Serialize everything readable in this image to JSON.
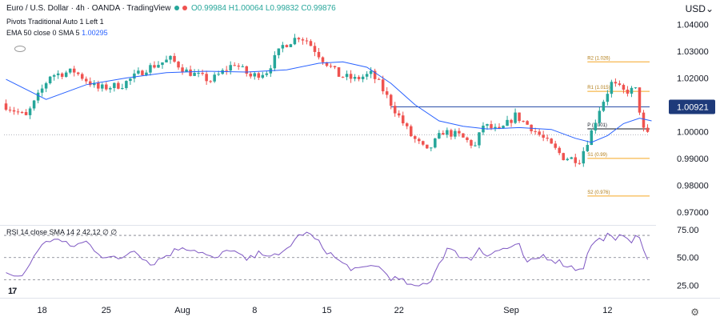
{
  "header": {
    "symbol_title": "Euro / U.S. Dollar · 4h · OANDA · TradingView",
    "ohlc": "O0.99984 H1.00064 L0.99832 C0.99876",
    "pivots_label": "Pivots Traditional Auto 1 Left 1",
    "ema_label": "EMA 50 close 0 SMA 5",
    "ema_value": "1.00295",
    "currency": "USD"
  },
  "rsi_legend": "RSI 14 close SMA 14 2 42.12 ∅ ∅",
  "colors": {
    "up": "#26a69a",
    "down": "#ef5350",
    "ema": "#2962ff",
    "rsi": "#7e57c2",
    "pivot": "#f5a623",
    "hline": "#2a4ea8"
  },
  "chart_data": [
    {
      "type": "candlestick",
      "title": "Euro / U.S. Dollar · 4h · OANDA · TradingView",
      "ylim": [
        0.9655,
        1.0425
      ],
      "y_ticks": [
        "1.04000",
        "1.03000",
        "1.02000",
        "1.00000",
        "0.99000",
        "0.98000",
        "0.97000"
      ],
      "x_ticks": [
        "18",
        "25",
        "Aug",
        "8",
        "15",
        "22",
        "Sep",
        "12"
      ],
      "x_tick_positions": [
        9,
        25,
        44,
        62,
        80,
        98,
        126,
        150
      ],
      "bar_count": 161,
      "price_path": [
        [
          0,
          1.0105
        ],
        [
          6,
          1.0055
        ],
        [
          12,
          1.021
        ],
        [
          18,
          1.0225
        ],
        [
          24,
          1.016
        ],
        [
          30,
          1.0175
        ],
        [
          36,
          1.0235
        ],
        [
          42,
          1.027
        ],
        [
          46,
          1.0225
        ],
        [
          52,
          1.019
        ],
        [
          58,
          1.0255
        ],
        [
          62,
          1.0205
        ],
        [
          66,
          1.0225
        ],
        [
          70,
          1.032
        ],
        [
          74,
          1.0355
        ],
        [
          76,
          1.034
        ],
        [
          80,
          1.027
        ],
        [
          84,
          1.021
        ],
        [
          88,
          1.0195
        ],
        [
          92,
          1.0215
        ],
        [
          94,
          1.018
        ],
        [
          98,
          1.008
        ],
        [
          102,
          0.9985
        ],
        [
          106,
          0.9925
        ],
        [
          110,
          1.0
        ],
        [
          114,
          0.9985
        ],
        [
          118,
          0.9945
        ],
        [
          120,
          1.0025
        ],
        [
          124,
          1.0
        ],
        [
          128,
          1.006
        ],
        [
          132,
          1.0015
        ],
        [
          136,
          0.996
        ],
        [
          140,
          0.9905
        ],
        [
          144,
          0.9895
        ],
        [
          147,
          1.0
        ],
        [
          149,
          1.0085
        ],
        [
          152,
          1.018
        ],
        [
          155,
          1.015
        ],
        [
          158,
          1.0155
        ],
        [
          160,
          1.0005
        ],
        [
          161,
          0.9988
        ]
      ],
      "ema_path": [
        [
          0,
          1.0195
        ],
        [
          10,
          1.012
        ],
        [
          20,
          1.0175
        ],
        [
          30,
          1.02
        ],
        [
          40,
          1.022
        ],
        [
          50,
          1.0225
        ],
        [
          60,
          1.0222
        ],
        [
          70,
          1.023
        ],
        [
          78,
          1.0255
        ],
        [
          84,
          1.026
        ],
        [
          90,
          1.024
        ],
        [
          96,
          1.018
        ],
        [
          102,
          1.01
        ],
        [
          108,
          1.004
        ],
        [
          114,
          1.002
        ],
        [
          120,
          1.001
        ],
        [
          128,
          1.0015
        ],
        [
          136,
          1.0008
        ],
        [
          142,
          0.9975
        ],
        [
          146,
          0.996
        ],
        [
          150,
          0.9985
        ],
        [
          154,
          1.003
        ],
        [
          158,
          1.005
        ],
        [
          161,
          1.004
        ]
      ],
      "hlines": [
        {
          "name": "level-1-00921",
          "value": 1.00921,
          "label": "1.00921",
          "from_bar": 96
        },
        {
          "name": "pivot-p",
          "value": 1.001,
          "label": "P (1.001)",
          "from_bar": 145
        },
        {
          "name": "dotted-last",
          "value": 0.9988,
          "label": "",
          "from_bar": 0
        }
      ],
      "pivots": [
        {
          "label": "R2 (1.026)",
          "value": 1.026
        },
        {
          "label": "R1 (1.015)",
          "value": 1.015
        },
        {
          "label": "P (1.001)",
          "value": 1.001
        },
        {
          "label": "S1 (0.99)",
          "value": 0.99
        },
        {
          "label": "S2 (0.976)",
          "value": 0.976
        }
      ],
      "highlight_value": "1.00921"
    },
    {
      "type": "line",
      "title": "RSI 14 close SMA 14 2",
      "ylim": [
        18,
        78
      ],
      "y_ticks": [
        "75.00",
        "50.00",
        "25.00"
      ],
      "bands": [
        70,
        50,
        30
      ],
      "rsi_path": [
        [
          0,
          36
        ],
        [
          4,
          32
        ],
        [
          8,
          58
        ],
        [
          12,
          68
        ],
        [
          16,
          60
        ],
        [
          20,
          64
        ],
        [
          24,
          52
        ],
        [
          28,
          48
        ],
        [
          32,
          58
        ],
        [
          36,
          44
        ],
        [
          40,
          52
        ],
        [
          44,
          60
        ],
        [
          48,
          56
        ],
        [
          52,
          48
        ],
        [
          56,
          58
        ],
        [
          60,
          47
        ],
        [
          64,
          55
        ],
        [
          68,
          50
        ],
        [
          72,
          66
        ],
        [
          74,
          72
        ],
        [
          76,
          70
        ],
        [
          80,
          56
        ],
        [
          84,
          44
        ],
        [
          88,
          38
        ],
        [
          92,
          44
        ],
        [
          96,
          32
        ],
        [
          100,
          27
        ],
        [
          102,
          22
        ],
        [
          106,
          30
        ],
        [
          108,
          45
        ],
        [
          110,
          58
        ],
        [
          112,
          54
        ],
        [
          116,
          48
        ],
        [
          118,
          60
        ],
        [
          120,
          52
        ],
        [
          124,
          58
        ],
        [
          128,
          60
        ],
        [
          130,
          44
        ],
        [
          134,
          52
        ],
        [
          138,
          46
        ],
        [
          142,
          40
        ],
        [
          144,
          42
        ],
        [
          146,
          62
        ],
        [
          150,
          70
        ],
        [
          152,
          64
        ],
        [
          154,
          72
        ],
        [
          156,
          66
        ],
        [
          158,
          68
        ],
        [
          160,
          48
        ],
        [
          161,
          43
        ]
      ],
      "last_value": "42.12"
    }
  ]
}
